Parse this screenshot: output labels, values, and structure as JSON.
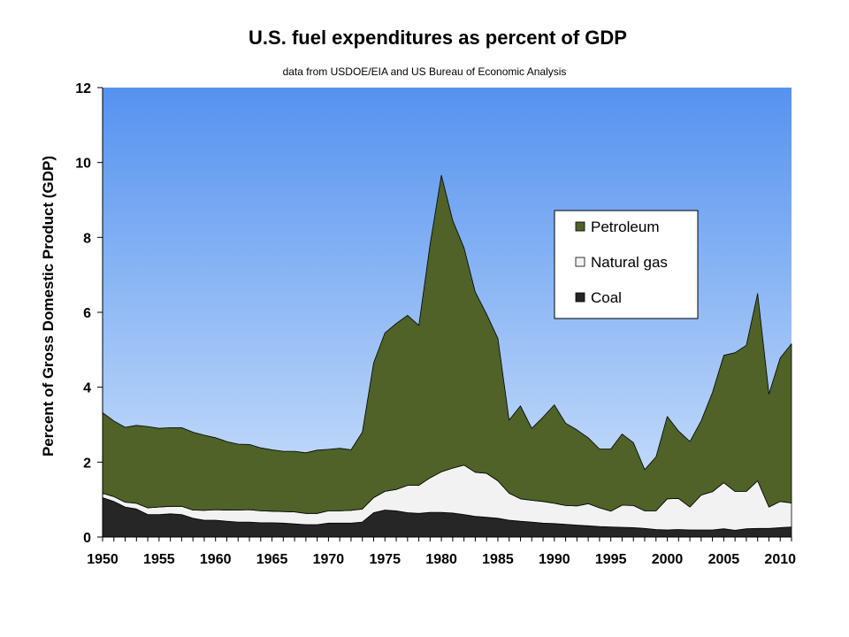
{
  "chart_data": {
    "type": "area",
    "title": "U.S. fuel expenditures as percent of GDP",
    "subtitle": "data from USDOE/EIA and US Bureau of Economic Analysis",
    "xlabel": "",
    "ylabel": "Percent of Gross Domestic Product (GDP)",
    "xlim": [
      1950,
      2011
    ],
    "ylim": [
      0,
      12
    ],
    "x_ticks": [
      1950,
      1955,
      1960,
      1965,
      1970,
      1975,
      1980,
      1985,
      1990,
      1995,
      2000,
      2005,
      2010
    ],
    "y_ticks": [
      0,
      2,
      4,
      6,
      8,
      10,
      12
    ],
    "stacked": true,
    "legend_position": "upper-right-center",
    "x": [
      1950,
      1951,
      1952,
      1953,
      1954,
      1955,
      1956,
      1957,
      1958,
      1959,
      1960,
      1961,
      1962,
      1963,
      1964,
      1965,
      1966,
      1967,
      1968,
      1969,
      1970,
      1971,
      1972,
      1973,
      1974,
      1975,
      1976,
      1977,
      1978,
      1979,
      1980,
      1981,
      1982,
      1983,
      1984,
      1985,
      1986,
      1987,
      1988,
      1989,
      1990,
      1991,
      1992,
      1993,
      1994,
      1995,
      1996,
      1997,
      1998,
      1999,
      2000,
      2001,
      2002,
      2003,
      2004,
      2005,
      2006,
      2007,
      2008,
      2009,
      2010,
      2011
    ],
    "series": [
      {
        "name": "Coal",
        "color": "#262626",
        "values": [
          1.05,
          0.95,
          0.8,
          0.75,
          0.6,
          0.6,
          0.62,
          0.6,
          0.5,
          0.45,
          0.45,
          0.42,
          0.4,
          0.4,
          0.38,
          0.38,
          0.37,
          0.35,
          0.33,
          0.33,
          0.37,
          0.37,
          0.37,
          0.4,
          0.65,
          0.72,
          0.7,
          0.65,
          0.63,
          0.66,
          0.66,
          0.64,
          0.6,
          0.55,
          0.53,
          0.5,
          0.45,
          0.42,
          0.4,
          0.37,
          0.36,
          0.34,
          0.32,
          0.3,
          0.28,
          0.27,
          0.26,
          0.25,
          0.23,
          0.2,
          0.19,
          0.2,
          0.19,
          0.19,
          0.19,
          0.22,
          0.18,
          0.22,
          0.23,
          0.23,
          0.25,
          0.27
        ]
      },
      {
        "name": "Natural gas",
        "color": "#f2f2f2",
        "values": [
          0.12,
          0.13,
          0.13,
          0.15,
          0.18,
          0.2,
          0.2,
          0.22,
          0.22,
          0.26,
          0.28,
          0.3,
          0.32,
          0.33,
          0.32,
          0.31,
          0.31,
          0.32,
          0.3,
          0.3,
          0.33,
          0.33,
          0.34,
          0.35,
          0.4,
          0.5,
          0.57,
          0.73,
          0.75,
          0.92,
          1.08,
          1.2,
          1.32,
          1.18,
          1.17,
          1.0,
          0.72,
          0.6,
          0.58,
          0.58,
          0.54,
          0.5,
          0.51,
          0.59,
          0.5,
          0.42,
          0.59,
          0.59,
          0.47,
          0.5,
          0.83,
          0.83,
          0.61,
          0.93,
          1.02,
          1.23,
          1.04,
          1.0,
          1.27,
          0.57,
          0.7,
          0.64
        ]
      },
      {
        "name": "Petroleum",
        "color": "#4f6228",
        "values": [
          2.15,
          2.02,
          2.0,
          2.08,
          2.17,
          2.1,
          2.1,
          2.1,
          2.08,
          2.01,
          1.92,
          1.83,
          1.76,
          1.74,
          1.68,
          1.64,
          1.61,
          1.62,
          1.62,
          1.69,
          1.64,
          1.67,
          1.62,
          2.05,
          3.6,
          4.23,
          4.43,
          4.54,
          4.27,
          6.23,
          7.92,
          6.61,
          5.8,
          4.81,
          4.25,
          3.8,
          1.95,
          2.48,
          1.92,
          2.25,
          2.63,
          2.2,
          2.03,
          1.76,
          1.57,
          1.66,
          1.9,
          1.68,
          1.1,
          1.44,
          2.2,
          1.8,
          1.75,
          1.98,
          2.65,
          3.4,
          3.7,
          3.9,
          5.0,
          3.02,
          3.83,
          4.25
        ]
      }
    ]
  }
}
